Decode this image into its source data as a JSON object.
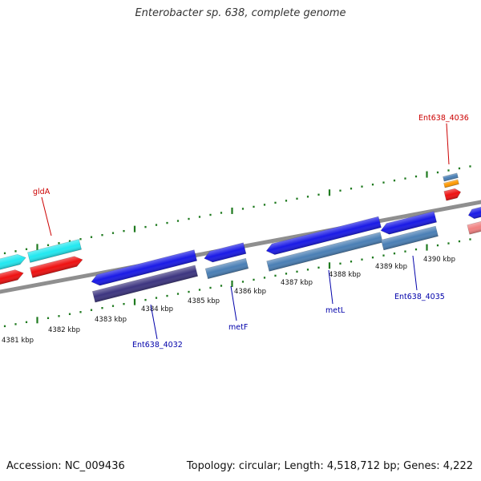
{
  "title": "Enterobacter sp. 638, complete genome",
  "footer": {
    "accession": "Accession: NC_009436",
    "topology": "Topology: circular; Length: 4,518,712 bp; Genes: 4,222"
  },
  "colors": {
    "backbone": "#8f8f8f",
    "tick": "#1f7a1f",
    "gene_label_red": "#cc0000",
    "gene_label_blue": "#0000aa",
    "gene_blue": "#1a1ae6",
    "cds_steel": "#4a7fb5",
    "cds_purple": "#3d3580",
    "gene_cyan": "#22e8f0",
    "gene_red": "#ee1111",
    "gene_orange": "#ff9900",
    "gene_pink": "#f08080"
  },
  "axis": {
    "unit": "kbp",
    "tick_labels": [
      "4381 kbp",
      "4382 kbp",
      "4383 kbp",
      "4384 kbp",
      "4385 kbp",
      "4386 kbp",
      "4387 kbp",
      "4388 kbp",
      "4389 kbp",
      "4390 kbp"
    ]
  },
  "gene_labels": [
    {
      "name": "gldA",
      "strand": "forward"
    },
    {
      "name": "Ent638_4036",
      "strand": "forward"
    },
    {
      "name": "Ent638_4032",
      "strand": "reverse"
    },
    {
      "name": "metF",
      "strand": "reverse"
    },
    {
      "name": "metL",
      "strand": "reverse"
    },
    {
      "name": "Ent638_4035",
      "strand": "reverse"
    }
  ]
}
